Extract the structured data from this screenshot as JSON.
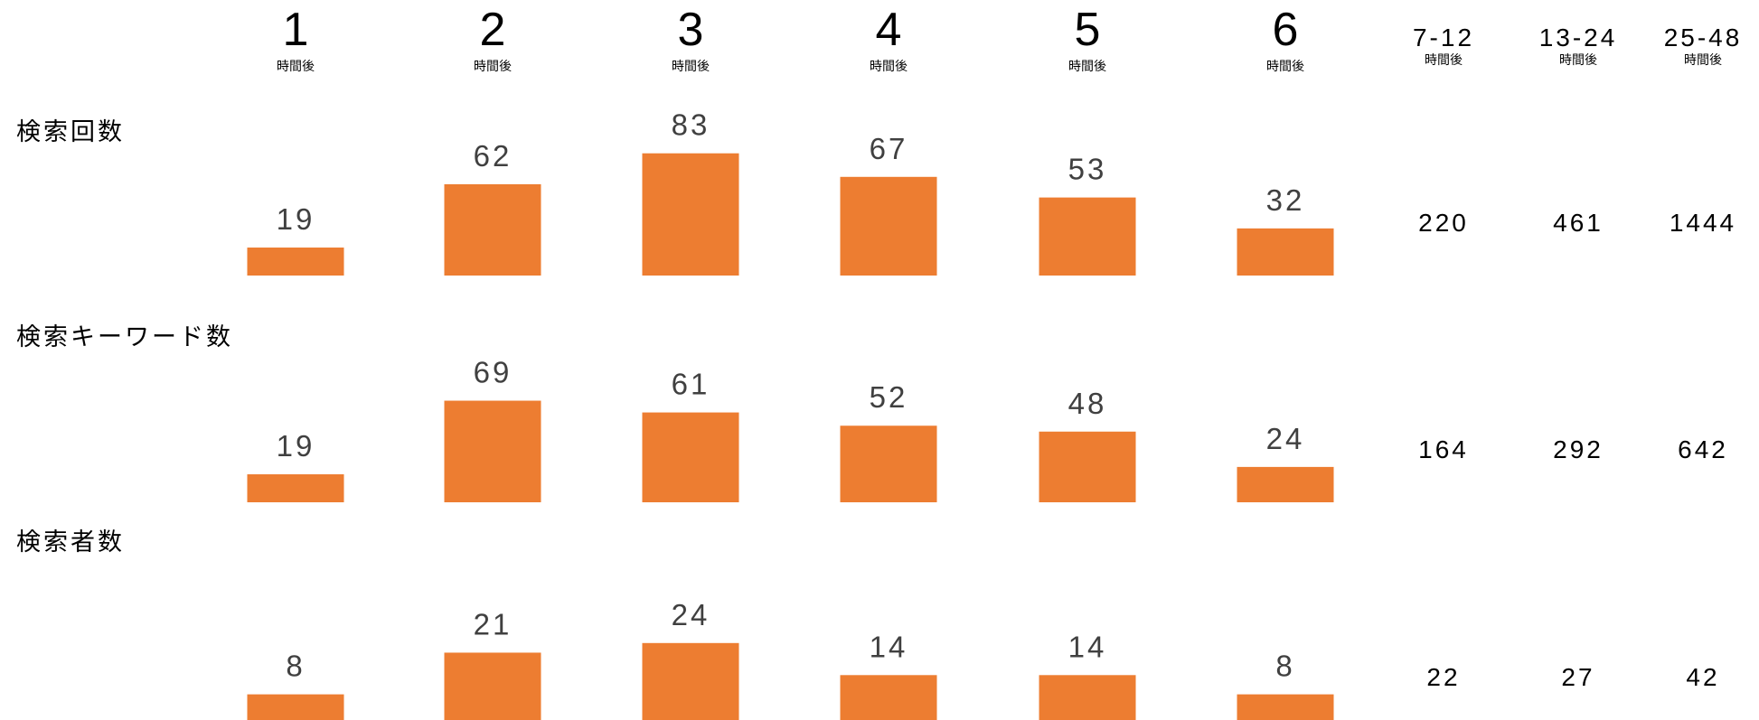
{
  "chart_data": {
    "type": "bar",
    "bar_color": "#ED7D31",
    "label_color": "#404040",
    "hour_suffix": "時間後",
    "categories": [
      "1",
      "2",
      "3",
      "4",
      "5",
      "6"
    ],
    "extra_categories": [
      "7-12",
      "13-24",
      "25-48"
    ],
    "series": [
      {
        "name": "検索回数",
        "values": [
          19,
          62,
          83,
          67,
          53,
          32
        ],
        "extra_values": [
          220,
          461,
          1444
        ]
      },
      {
        "name": "検索キーワード数",
        "values": [
          19,
          69,
          61,
          52,
          48,
          24
        ],
        "extra_values": [
          164,
          292,
          642
        ]
      },
      {
        "name": "検索者数",
        "values": [
          8,
          21,
          24,
          14,
          14,
          8
        ],
        "extra_values": [
          22,
          27,
          42
        ]
      }
    ]
  }
}
